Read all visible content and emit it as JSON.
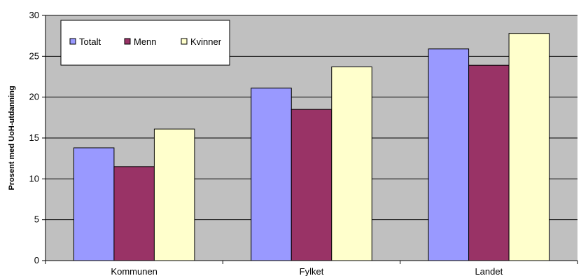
{
  "chart_data": {
    "type": "bar",
    "categories": [
      "Kommunen",
      "Fylket",
      "Landet"
    ],
    "series": [
      {
        "name": "Totalt",
        "values": [
          13.8,
          21.1,
          25.9
        ],
        "color": "#9999FF"
      },
      {
        "name": "Menn",
        "values": [
          11.5,
          18.5,
          23.9
        ],
        "color": "#993366"
      },
      {
        "name": "Kvinner",
        "values": [
          16.1,
          23.7,
          27.8
        ],
        "color": "#FFFFCC"
      }
    ],
    "title": "",
    "xlabel": "",
    "ylabel": "Prosent med UoH-utdanning",
    "ylim": [
      0,
      30
    ],
    "yticks": [
      0,
      5,
      10,
      15,
      20,
      25,
      30
    ],
    "grid": true,
    "legend": "top-left",
    "plot_background": "#C0C0C0"
  }
}
